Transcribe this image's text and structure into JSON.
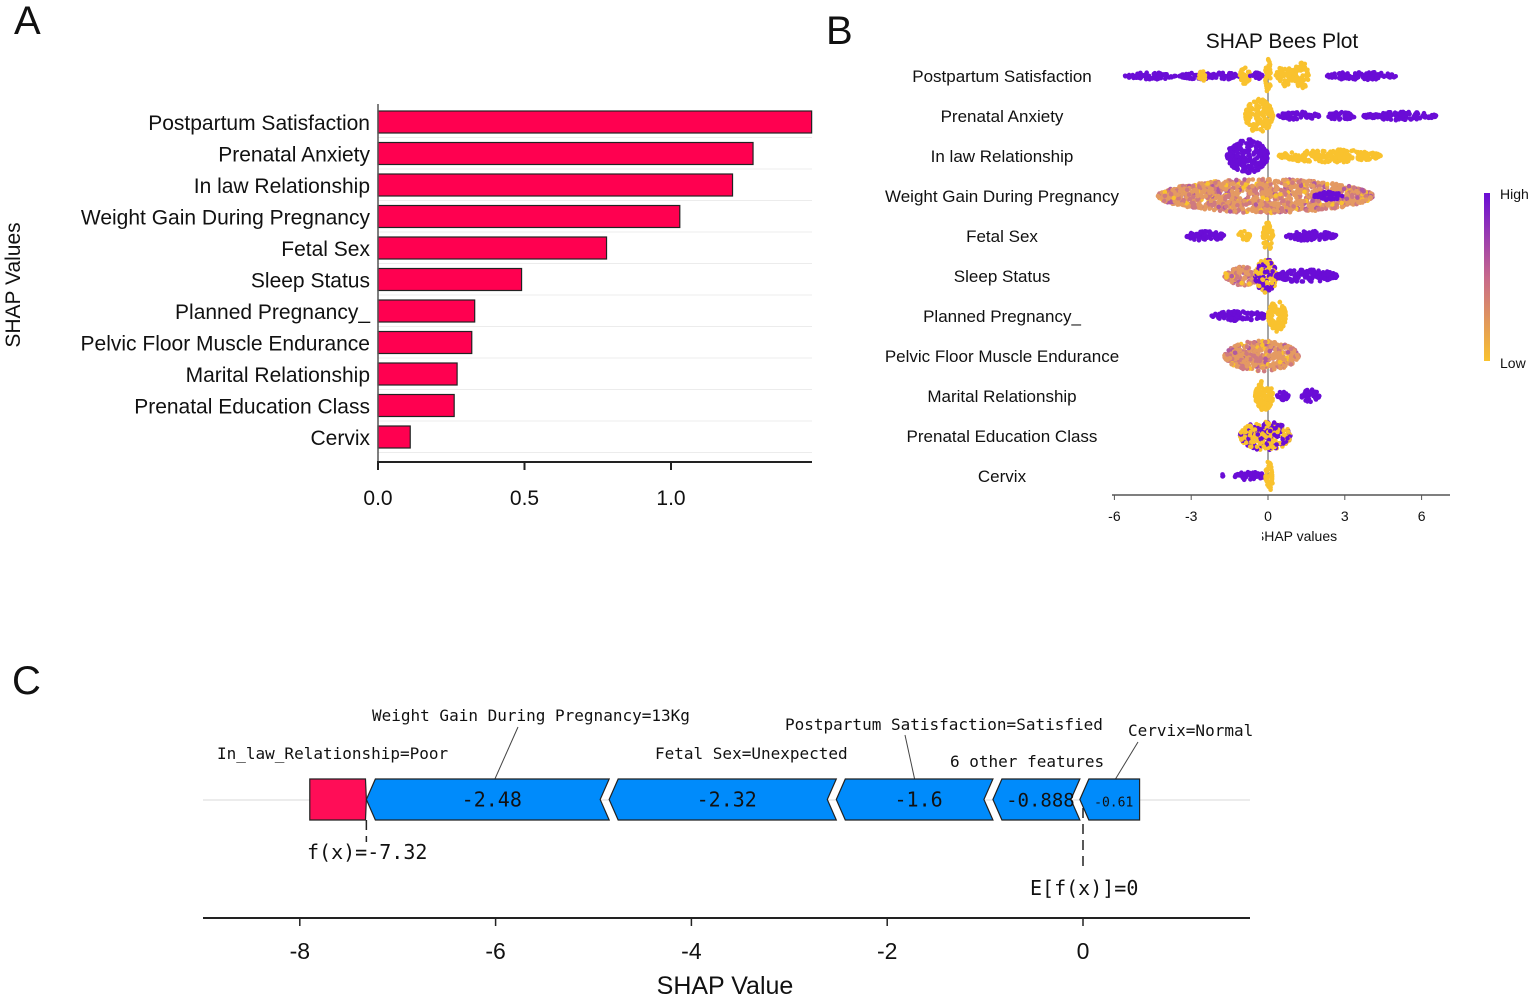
{
  "panels": {
    "a": "A",
    "b": "B",
    "c": "C"
  },
  "chart_data": [
    {
      "type": "bar",
      "orientation": "horizontal",
      "ylabel": "SHAP Values",
      "xlabel": "",
      "categories": [
        "Postpartum Satisfaction",
        "Prenatal Anxiety",
        "In law Relationship",
        "Weight Gain During Pregnancy",
        "Fetal Sex",
        "Sleep Status",
        "Planned Pregnancy_",
        "Pelvic Floor Muscle Endurance",
        "Marital Relationship",
        "Prenatal Education Class",
        "Cervix"
      ],
      "values": [
        1.48,
        1.28,
        1.21,
        1.03,
        0.78,
        0.49,
        0.33,
        0.32,
        0.27,
        0.26,
        0.11
      ],
      "xticks": [
        "0.0",
        "0.5",
        "1.0"
      ],
      "xlim": [
        0,
        1.48
      ],
      "grid": "horizontal",
      "bar_color": "#ff0050"
    },
    {
      "type": "scatter",
      "subtype": "beeswarm",
      "title": "SHAP Bees Plot",
      "xlabel": "SHAP values",
      "xticks": [
        "-6",
        "-3",
        "0",
        "3",
        "6"
      ],
      "xlim": [
        -6.2,
        7
      ],
      "colorbar": {
        "high_label": "High",
        "low_label": "Low",
        "high_color": "#6a0dd6",
        "low_color": "#f9c22e"
      },
      "features": [
        {
          "name": "Postpartum Satisfaction",
          "clusters": [
            {
              "x": [
                -5.6,
                -3.6
              ],
              "density": 0.1,
              "color": "high"
            },
            {
              "x": [
                -3.5,
                -2.0
              ],
              "density": 0.08,
              "color": "high"
            },
            {
              "x": [
                -2.7,
                -2.4
              ],
              "density": 0.25,
              "color": "low"
            },
            {
              "x": [
                -2.3,
                -1.1
              ],
              "density": 0.1,
              "color": "high"
            },
            {
              "x": [
                -1.1,
                -0.7
              ],
              "density": 0.45,
              "color": "low"
            },
            {
              "x": [
                -0.7,
                -0.2
              ],
              "density": 0.1,
              "color": "high"
            },
            {
              "x": [
                -0.12,
                0.12
              ],
              "density": 1.0,
              "color": "low"
            },
            {
              "x": [
                0.3,
                1.0
              ],
              "density": 0.55,
              "color": "low"
            },
            {
              "x": [
                1.0,
                1.6
              ],
              "density": 0.8,
              "color": "low"
            },
            {
              "x": [
                2.3,
                5.0
              ],
              "density": 0.15,
              "color": "high"
            }
          ]
        },
        {
          "name": "Prenatal Anxiety",
          "clusters": [
            {
              "x": [
                -0.9,
                0.2
              ],
              "density": 1.0,
              "color": "low"
            },
            {
              "x": [
                0.4,
                2.0
              ],
              "density": 0.15,
              "color": "high"
            },
            {
              "x": [
                2.3,
                3.4
              ],
              "density": 0.12,
              "color": "high"
            },
            {
              "x": [
                3.7,
                6.6
              ],
              "density": 0.15,
              "color": "high"
            }
          ]
        },
        {
          "name": "In law Relationship",
          "clusters": [
            {
              "x": [
                -1.6,
                0.0
              ],
              "density": 1.0,
              "color": "high"
            },
            {
              "x": [
                0.4,
                4.4
              ],
              "density": 0.3,
              "color": "low"
            }
          ]
        },
        {
          "name": "Weight Gain During Pregnancy",
          "clusters": [
            {
              "x": [
                -4.3,
                4.1
              ],
              "density": 1.0,
              "color": "mid"
            },
            {
              "x": [
                1.8,
                2.9
              ],
              "density": 0.15,
              "color": "high"
            }
          ]
        },
        {
          "name": "Fetal Sex",
          "clusters": [
            {
              "x": [
                -3.2,
                -1.7
              ],
              "density": 0.2,
              "color": "high"
            },
            {
              "x": [
                -1.2,
                -0.7
              ],
              "density": 0.2,
              "color": "low"
            },
            {
              "x": [
                -0.2,
                0.2
              ],
              "density": 0.9,
              "color": "low"
            },
            {
              "x": [
                0.7,
                2.7
              ],
              "density": 0.2,
              "color": "high"
            }
          ]
        },
        {
          "name": "Sleep Status",
          "clusters": [
            {
              "x": [
                -1.7,
                -0.3
              ],
              "density": 0.5,
              "color": "mid"
            },
            {
              "x": [
                -0.5,
                0.35
              ],
              "density": 1.0,
              "color": "mixed"
            },
            {
              "x": [
                0.3,
                2.7
              ],
              "density": 0.3,
              "color": "high"
            }
          ]
        },
        {
          "name": "Planned Pregnancy_",
          "clusters": [
            {
              "x": [
                -2.2,
                0.0
              ],
              "density": 0.2,
              "color": "high"
            },
            {
              "x": [
                0.0,
                0.7
              ],
              "density": 0.9,
              "color": "low"
            }
          ]
        },
        {
          "name": "Pelvic Floor Muscle Endurance",
          "clusters": [
            {
              "x": [
                -1.7,
                1.2
              ],
              "density": 0.9,
              "color": "mid"
            }
          ]
        },
        {
          "name": "Marital Relationship",
          "clusters": [
            {
              "x": [
                -0.5,
                0.2
              ],
              "density": 0.9,
              "color": "low"
            },
            {
              "x": [
                0.3,
                0.8
              ],
              "density": 0.15,
              "color": "high"
            },
            {
              "x": [
                1.3,
                2.0
              ],
              "density": 0.3,
              "color": "high"
            }
          ]
        },
        {
          "name": "Prenatal Education Class",
          "clusters": [
            {
              "x": [
                -1.1,
                0.9
              ],
              "density": 0.85,
              "color": "mixed"
            }
          ]
        },
        {
          "name": "Cervix",
          "clusters": [
            {
              "x": [
                -1.85,
                -1.75
              ],
              "density": 0.1,
              "color": "high"
            },
            {
              "x": [
                -1.3,
                -0.1
              ],
              "density": 0.15,
              "color": "high"
            },
            {
              "x": [
                -0.1,
                0.2
              ],
              "density": 0.9,
              "color": "low"
            }
          ]
        }
      ]
    },
    {
      "type": "force",
      "xlabel": "SHAP Value",
      "xticks": [
        -8,
        -6,
        -4,
        -2,
        0
      ],
      "xlim": [
        -9,
        1.7
      ],
      "base_value": 0,
      "base_label": "E[f(x)]=0",
      "output_value": -7.32,
      "output_label": "f(x)=-7.32",
      "positive_color": "#ff0d57",
      "negative_color": "#008bfb",
      "contributions": [
        {
          "feature": "In_law_Relationship=Poor",
          "value": 0.578
        },
        {
          "feature": "Weight Gain During Pregnancy=13Kg",
          "value": -2.48,
          "label": "-2.48"
        },
        {
          "feature": "Fetal Sex=Unexpected",
          "value": -2.32,
          "label": "-2.32"
        },
        {
          "feature": "Postpartum Satisfaction=Satisfied",
          "value": -1.6,
          "label": "-1.6"
        },
        {
          "feature": "6 other features",
          "value": -0.888,
          "label": "-0.888"
        },
        {
          "feature": "Cervix=Normal",
          "value": -0.61,
          "label": "-0.61"
        }
      ]
    }
  ]
}
